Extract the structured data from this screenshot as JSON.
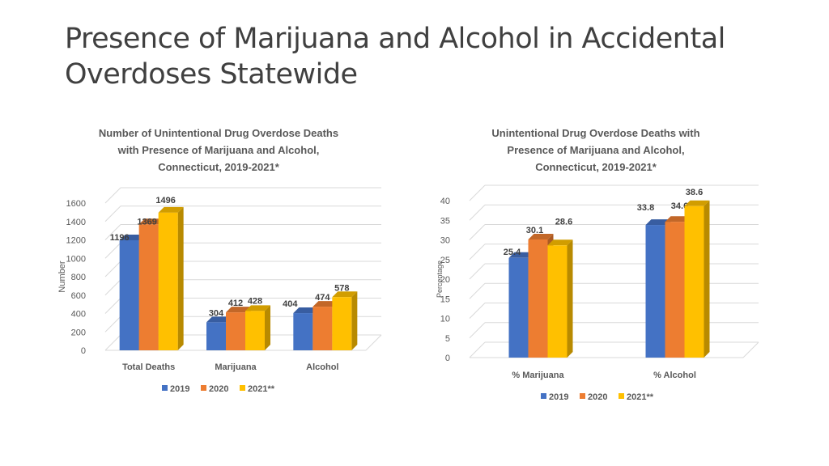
{
  "slide": {
    "title_line1": "Presence of Marijuana and Alcohol in Accidental",
    "title_line2": "Overdoses Statewide"
  },
  "colors": {
    "2019": "#4472C4",
    "2020": "#ED7D31",
    "2021**": "#FFC000"
  },
  "chart_data": [
    {
      "type": "bar",
      "title_lines": [
        "Number of Unintentional Drug Overdose Deaths",
        "with Presence of Marijuana and Alcohol,",
        "Connecticut, 2019-2021*"
      ],
      "ylabel": "Number",
      "xlabel": "",
      "categories": [
        "Total Deaths",
        "Marijuana",
        "Alcohol"
      ],
      "series": [
        {
          "name": "2019",
          "values": [
            1196,
            304,
            404
          ]
        },
        {
          "name": "2020",
          "values": [
            1369,
            412,
            474
          ]
        },
        {
          "name": "2021**",
          "values": [
            1496,
            428,
            578
          ]
        }
      ],
      "ylim": [
        0,
        1600
      ],
      "yticks": [
        0,
        200,
        400,
        600,
        800,
        1000,
        1200,
        1400,
        1600
      ],
      "grid": true,
      "legend": "bottom"
    },
    {
      "type": "bar",
      "title_lines": [
        "Unintentional Drug Overdose Deaths with",
        "Presence of Marijuana and Alcohol,",
        "Connecticut, 2019-2021*"
      ],
      "ylabel": "Percentage",
      "xlabel": "",
      "categories": [
        "% Marijuana",
        "% Alcohol"
      ],
      "series": [
        {
          "name": "2019",
          "values": [
            25.4,
            33.8
          ]
        },
        {
          "name": "2020",
          "values": [
            30.1,
            34.6
          ]
        },
        {
          "name": "2021**",
          "values": [
            28.6,
            38.6
          ]
        }
      ],
      "ylim": [
        0,
        40
      ],
      "yticks": [
        0,
        5,
        10,
        15,
        20,
        25,
        30,
        35,
        40
      ],
      "grid": true,
      "legend": "bottom"
    }
  ]
}
